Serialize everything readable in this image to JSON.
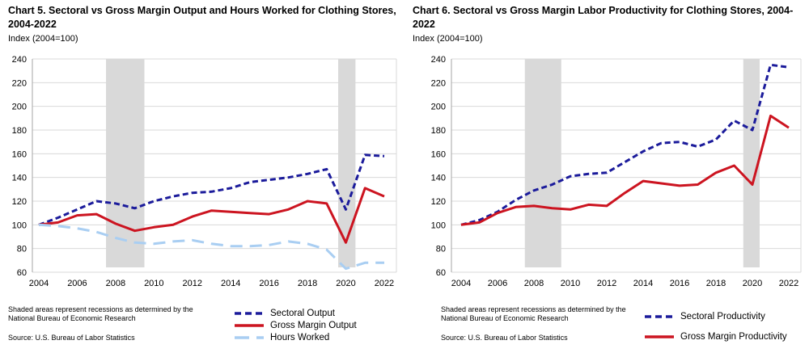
{
  "colors": {
    "sectoral": "#1b1b9b",
    "gross_margin": "#cc1420",
    "hours": "#a9cef2",
    "recession_band": "#d9d9d9",
    "gridline": "#d9d9d9",
    "axis": "#a6a6a6",
    "text": "#000000"
  },
  "footnote": {
    "line1": "Shaded areas represent recessions as determined by the",
    "line2": "National Bureau of Economic Research",
    "source": "Source: U.S. Bureau of Labor Statistics"
  },
  "chart_data": [
    {
      "type": "line",
      "title_line1": "Chart 5. Sectoral vs Gross Margin Output and Hours Worked for Clothing Stores,",
      "title_line2": "2004-2022",
      "y_axis_label": "Index (2004=100)",
      "x": [
        2004,
        2005,
        2006,
        2007,
        2008,
        2009,
        2010,
        2011,
        2012,
        2013,
        2014,
        2015,
        2016,
        2017,
        2018,
        2019,
        2020,
        2021,
        2022
      ],
      "xticks": [
        2004,
        2006,
        2008,
        2010,
        2012,
        2014,
        2016,
        2018,
        2020,
        2022
      ],
      "ylim": [
        60,
        240
      ],
      "yticks": [
        60,
        80,
        100,
        120,
        140,
        160,
        180,
        200,
        220,
        240
      ],
      "grid": "horizontal",
      "legend_position": "bottom-right",
      "recession_bands": [
        [
          2007.5,
          2009.5
        ],
        [
          2019.6,
          2020.5
        ]
      ],
      "series": [
        {
          "name": "Sectoral Output",
          "color": "#1b1b9b",
          "style": "dashed",
          "values": [
            100,
            106,
            113,
            120,
            118,
            114,
            120,
            124,
            127,
            128,
            131,
            136,
            138,
            140,
            143,
            147,
            113,
            159,
            158
          ]
        },
        {
          "name": "Gross Margin Output",
          "color": "#cc1420",
          "style": "solid",
          "values": [
            100,
            102,
            108,
            109,
            101,
            95,
            98,
            100,
            107,
            112,
            111,
            110,
            109,
            113,
            120,
            118,
            85,
            131,
            124
          ]
        },
        {
          "name": "Hours Worked",
          "color": "#a9cef2",
          "style": "long-dashed",
          "values": [
            100,
            99,
            97,
            94,
            89,
            85,
            84,
            86,
            87,
            84,
            82,
            82,
            83,
            86,
            84,
            79,
            63,
            68,
            68
          ]
        }
      ]
    },
    {
      "type": "line",
      "title_line1": "Chart 6. Sectoral vs Gross Margin Labor Productivity for Clothing Stores, 2004-",
      "title_line2": "2022",
      "y_axis_label": "Index (2004=100)",
      "x": [
        2004,
        2005,
        2006,
        2007,
        2008,
        2009,
        2010,
        2011,
        2012,
        2013,
        2014,
        2015,
        2016,
        2017,
        2018,
        2019,
        2020,
        2021,
        2022
      ],
      "xticks": [
        2004,
        2006,
        2008,
        2010,
        2012,
        2014,
        2016,
        2018,
        2020,
        2022
      ],
      "ylim": [
        60,
        240
      ],
      "yticks": [
        60,
        80,
        100,
        120,
        140,
        160,
        180,
        200,
        220,
        240
      ],
      "grid": "horizontal",
      "legend_position": "bottom-right",
      "recession_bands": [
        [
          2007.5,
          2009.5
        ],
        [
          2019.5,
          2020.4
        ]
      ],
      "series": [
        {
          "name": "Sectoral Productivity",
          "color": "#1b1b9b",
          "style": "dashed",
          "values": [
            100,
            104,
            111,
            121,
            129,
            134,
            141,
            143,
            144,
            153,
            162,
            169,
            170,
            166,
            172,
            188,
            180,
            235,
            233
          ]
        },
        {
          "name": "Gross Margin Productivity",
          "color": "#cc1420",
          "style": "solid",
          "values": [
            100,
            102,
            110,
            115,
            116,
            114,
            113,
            117,
            116,
            127,
            137,
            135,
            133,
            134,
            144,
            150,
            134,
            192,
            182
          ]
        }
      ]
    }
  ]
}
